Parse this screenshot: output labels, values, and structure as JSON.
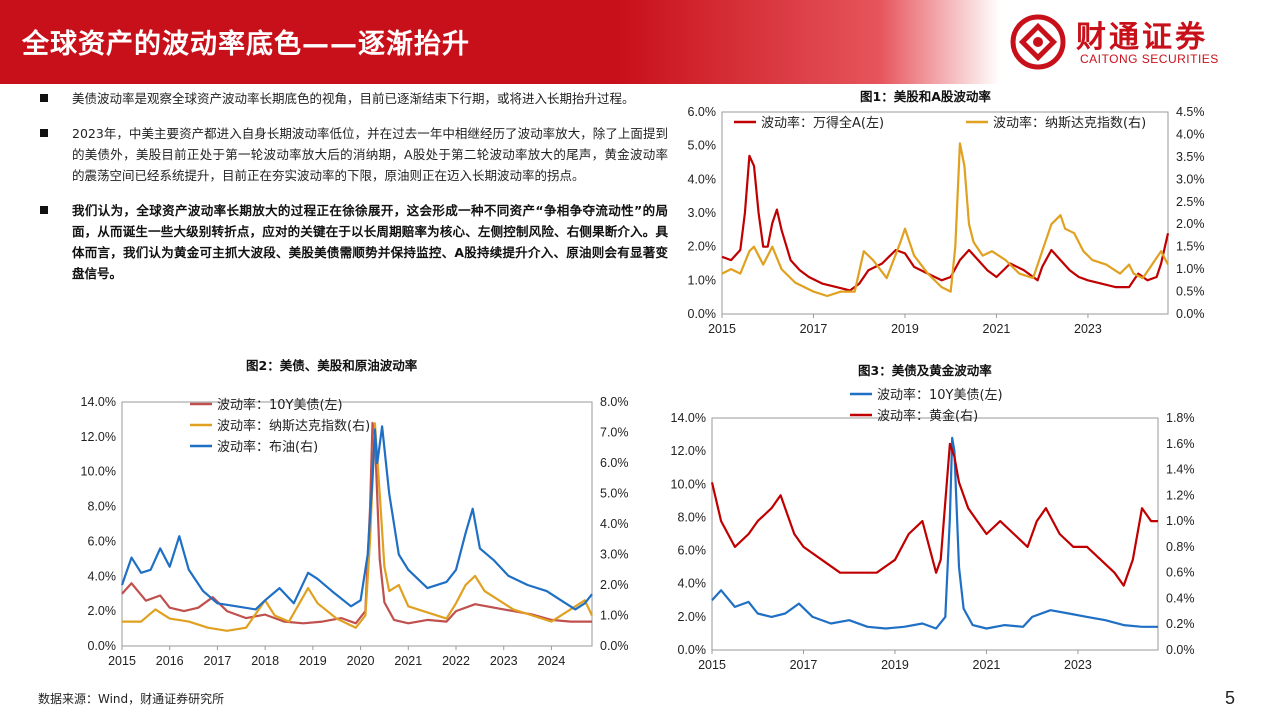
{
  "header": {
    "title": "全球资产的波动率底色——逐渐抬升",
    "logo_cn": "财通证券",
    "logo_en": "CAITONG SECURITIES",
    "brand_color": "#c8101a"
  },
  "bullets": [
    {
      "text": "美债波动率是观察全球资产波动率长期底色的视角，目前已逐渐结束下行期，或将进入长期抬升过程。",
      "bold": false
    },
    {
      "text": "2023年，中美主要资产都进入自身长期波动率低位，并在过去一年中相继经历了波动率放大，除了上面提到的美债外，美股目前正处于第一轮波动率放大后的消纳期，A股处于第二轮波动率放大的尾声，黄金波动率的震荡空间已经系统提升，目前正在夯实波动率的下限，原油则正在迈入长期波动率的拐点。",
      "bold": false
    },
    {
      "text": "我们认为，全球资产波动率长期放大的过程正在徐徐展开，这会形成一种不同资产“争相争夺流动性”的局面，从而诞生一些大级别转折点，应对的关键在于以长周期赔率为核心、左侧控制风险、右侧果断介入。具体而言，我们认为黄金可主抓大波段、美股美债需顺势并保持监控、A股持续提升介入、原油则会有显著变盘信号。",
      "bold": true
    }
  ],
  "source": "数据来源：Wind，财通证券研究所",
  "page_number": "5",
  "chart_data": [
    {
      "id": "fig1",
      "type": "line",
      "title": "图1：美股和A股波动率",
      "x_ticks": [
        "2015",
        "2017",
        "2019",
        "2021",
        "2023"
      ],
      "xlim": [
        2015,
        2024.75
      ],
      "left_ticks": [
        "0.0%",
        "1.0%",
        "2.0%",
        "3.0%",
        "4.0%",
        "5.0%",
        "6.0%"
      ],
      "right_ticks": [
        "0.0%",
        "0.5%",
        "1.0%",
        "1.5%",
        "2.0%",
        "2.5%",
        "3.0%",
        "3.5%",
        "4.0%",
        "4.5%"
      ],
      "ylim_left": [
        0,
        6
      ],
      "ylim_right": [
        0,
        4.5
      ],
      "legend_position": "top",
      "series": [
        {
          "name": "波动率：万得全A(左)",
          "axis": "left",
          "color": "#c00000",
          "x": [
            2015.0,
            2015.2,
            2015.4,
            2015.5,
            2015.6,
            2015.7,
            2015.8,
            2015.9,
            2016.0,
            2016.1,
            2016.2,
            2016.3,
            2016.5,
            2016.7,
            2016.9,
            2017.2,
            2017.5,
            2017.8,
            2018.0,
            2018.2,
            2018.5,
            2018.8,
            2019.0,
            2019.2,
            2019.5,
            2019.8,
            2020.0,
            2020.2,
            2020.4,
            2020.6,
            2020.8,
            2021.0,
            2021.3,
            2021.6,
            2021.9,
            2022.0,
            2022.2,
            2022.4,
            2022.6,
            2022.8,
            2023.0,
            2023.3,
            2023.6,
            2023.9,
            2024.0,
            2024.1,
            2024.3,
            2024.5,
            2024.6,
            2024.75
          ],
          "y": [
            1.7,
            1.6,
            1.9,
            3.0,
            4.7,
            4.4,
            3.0,
            2.0,
            2.0,
            2.7,
            3.1,
            2.5,
            1.6,
            1.3,
            1.1,
            0.9,
            0.8,
            0.7,
            0.9,
            1.3,
            1.5,
            1.9,
            1.8,
            1.4,
            1.2,
            1.0,
            1.1,
            1.6,
            1.9,
            1.6,
            1.3,
            1.1,
            1.5,
            1.3,
            1.0,
            1.4,
            1.9,
            1.6,
            1.3,
            1.1,
            1.0,
            0.9,
            0.8,
            0.8,
            1.0,
            1.2,
            1.0,
            1.1,
            1.5,
            2.4
          ]
        },
        {
          "name": "波动率：纳斯达克指数(右)",
          "axis": "right",
          "color": "#e0a020",
          "x": [
            2015.0,
            2015.2,
            2015.4,
            2015.6,
            2015.7,
            2015.9,
            2016.1,
            2016.3,
            2016.6,
            2017.0,
            2017.3,
            2017.6,
            2017.9,
            2018.1,
            2018.3,
            2018.6,
            2018.9,
            2019.0,
            2019.2,
            2019.5,
            2019.8,
            2020.0,
            2020.1,
            2020.2,
            2020.3,
            2020.4,
            2020.5,
            2020.7,
            2020.9,
            2021.2,
            2021.5,
            2021.8,
            2022.0,
            2022.2,
            2022.4,
            2022.5,
            2022.7,
            2022.9,
            2023.1,
            2023.4,
            2023.7,
            2023.9,
            2024.0,
            2024.2,
            2024.4,
            2024.6,
            2024.75
          ],
          "y": [
            0.9,
            1.0,
            0.9,
            1.4,
            1.5,
            1.1,
            1.5,
            1.0,
            0.7,
            0.5,
            0.4,
            0.5,
            0.5,
            1.4,
            1.2,
            0.8,
            1.6,
            1.9,
            1.3,
            0.9,
            0.6,
            0.5,
            1.5,
            3.8,
            3.3,
            2.0,
            1.6,
            1.3,
            1.4,
            1.2,
            0.9,
            0.8,
            1.4,
            2.0,
            2.2,
            1.9,
            1.8,
            1.4,
            1.2,
            1.1,
            0.9,
            1.1,
            0.9,
            0.8,
            1.1,
            1.4,
            1.1
          ]
        }
      ]
    },
    {
      "id": "fig2",
      "type": "line",
      "title": "图2：美债、美股和原油波动率",
      "x_ticks": [
        "2015",
        "2016",
        "2017",
        "2018",
        "2019",
        "2020",
        "2021",
        "2022",
        "2023",
        "2024"
      ],
      "xlim": [
        2015,
        2024.85
      ],
      "left_ticks": [
        "0.0%",
        "2.0%",
        "4.0%",
        "6.0%",
        "8.0%",
        "10.0%",
        "12.0%",
        "14.0%"
      ],
      "right_ticks": [
        "0.0%",
        "1.0%",
        "2.0%",
        "3.0%",
        "4.0%",
        "5.0%",
        "6.0%",
        "7.0%",
        "8.0%"
      ],
      "ylim_left": [
        0,
        14
      ],
      "ylim_right": [
        0,
        8
      ],
      "legend_position": "top-left",
      "series": [
        {
          "name": "波动率：10Y美债(左)",
          "axis": "left",
          "color": "#c0504d",
          "x": [
            2015.0,
            2015.2,
            2015.5,
            2015.8,
            2016.0,
            2016.3,
            2016.6,
            2016.9,
            2017.2,
            2017.6,
            2018.0,
            2018.4,
            2018.8,
            2019.2,
            2019.6,
            2019.9,
            2020.1,
            2020.2,
            2020.25,
            2020.3,
            2020.4,
            2020.5,
            2020.7,
            2021.0,
            2021.4,
            2021.8,
            2022.0,
            2022.4,
            2022.8,
            2023.2,
            2023.6,
            2024.0,
            2024.4,
            2024.85
          ],
          "y": [
            3.0,
            3.6,
            2.6,
            2.9,
            2.2,
            2.0,
            2.2,
            2.8,
            2.0,
            1.6,
            1.8,
            1.4,
            1.3,
            1.4,
            1.6,
            1.3,
            2.0,
            8.0,
            12.8,
            12.0,
            5.0,
            2.5,
            1.5,
            1.3,
            1.5,
            1.4,
            2.0,
            2.4,
            2.2,
            2.0,
            1.8,
            1.5,
            1.4,
            1.4
          ]
        },
        {
          "name": "波动率：纳斯达克指数(右)",
          "axis": "right",
          "color": "#e0a020",
          "x": [
            2015.0,
            2015.4,
            2015.7,
            2016.0,
            2016.4,
            2016.8,
            2017.2,
            2017.6,
            2018.0,
            2018.2,
            2018.5,
            2018.9,
            2019.1,
            2019.5,
            2019.9,
            2020.1,
            2020.2,
            2020.3,
            2020.4,
            2020.5,
            2020.6,
            2020.8,
            2021.0,
            2021.4,
            2021.8,
            2022.0,
            2022.2,
            2022.4,
            2022.6,
            2022.9,
            2023.2,
            2023.6,
            2024.0,
            2024.4,
            2024.7,
            2024.85
          ],
          "y": [
            0.8,
            0.8,
            1.2,
            0.9,
            0.8,
            0.6,
            0.5,
            0.6,
            1.5,
            1.0,
            0.8,
            1.9,
            1.4,
            0.9,
            0.6,
            1.0,
            3.5,
            7.3,
            5.0,
            2.6,
            1.8,
            2.0,
            1.3,
            1.1,
            0.9,
            1.4,
            2.0,
            2.3,
            1.8,
            1.5,
            1.2,
            1.0,
            0.8,
            1.2,
            1.5,
            1.0
          ]
        },
        {
          "name": "波动率：布油(右)",
          "axis": "right",
          "color": "#1f6fc4",
          "x": [
            2015.0,
            2015.2,
            2015.4,
            2015.6,
            2015.8,
            2016.0,
            2016.2,
            2016.4,
            2016.7,
            2017.0,
            2017.4,
            2017.8,
            2018.0,
            2018.3,
            2018.6,
            2018.9,
            2019.1,
            2019.4,
            2019.8,
            2020.0,
            2020.15,
            2020.25,
            2020.3,
            2020.35,
            2020.45,
            2020.6,
            2020.8,
            2021.0,
            2021.4,
            2021.8,
            2022.0,
            2022.2,
            2022.35,
            2022.5,
            2022.8,
            2023.1,
            2023.5,
            2023.9,
            2024.2,
            2024.5,
            2024.7,
            2024.85
          ],
          "y": [
            2.0,
            2.9,
            2.4,
            2.5,
            3.2,
            2.6,
            3.6,
            2.5,
            1.8,
            1.4,
            1.3,
            1.2,
            1.5,
            1.9,
            1.4,
            2.4,
            2.2,
            1.8,
            1.3,
            1.5,
            3.0,
            5.5,
            7.1,
            6.0,
            7.2,
            5.0,
            3.0,
            2.5,
            1.9,
            2.1,
            2.5,
            3.7,
            4.5,
            3.2,
            2.8,
            2.3,
            2.0,
            1.8,
            1.5,
            1.2,
            1.4,
            1.7
          ]
        }
      ]
    },
    {
      "id": "fig3",
      "type": "line",
      "title": "图3：美债及黄金波动率",
      "x_ticks": [
        "2015",
        "2017",
        "2019",
        "2021",
        "2023"
      ],
      "xlim": [
        2015,
        2024.75
      ],
      "left_ticks": [
        "0.0%",
        "2.0%",
        "4.0%",
        "6.0%",
        "8.0%",
        "10.0%",
        "12.0%",
        "14.0%"
      ],
      "right_ticks": [
        "0.0%",
        "0.2%",
        "0.4%",
        "0.6%",
        "0.8%",
        "1.0%",
        "1.2%",
        "1.4%",
        "1.6%",
        "1.8%"
      ],
      "ylim_left": [
        0,
        14
      ],
      "ylim_right": [
        0,
        1.8
      ],
      "legend_position": "top-left",
      "series": [
        {
          "name": "波动率：10Y美债(左)",
          "axis": "left",
          "color": "#1f6fc4",
          "x": [
            2015.0,
            2015.2,
            2015.5,
            2015.8,
            2016.0,
            2016.3,
            2016.6,
            2016.9,
            2017.2,
            2017.6,
            2018.0,
            2018.4,
            2018.8,
            2019.2,
            2019.6,
            2019.9,
            2020.1,
            2020.2,
            2020.25,
            2020.3,
            2020.4,
            2020.5,
            2020.7,
            2021.0,
            2021.4,
            2021.8,
            2022.0,
            2022.4,
            2022.8,
            2023.2,
            2023.6,
            2024.0,
            2024.4,
            2024.75
          ],
          "y": [
            3.0,
            3.6,
            2.6,
            2.9,
            2.2,
            2.0,
            2.2,
            2.8,
            2.0,
            1.6,
            1.8,
            1.4,
            1.3,
            1.4,
            1.6,
            1.3,
            2.0,
            8.0,
            12.8,
            12.0,
            5.0,
            2.5,
            1.5,
            1.3,
            1.5,
            1.4,
            2.0,
            2.4,
            2.2,
            2.0,
            1.8,
            1.5,
            1.4,
            1.4
          ]
        },
        {
          "name": "波动率：黄金(右)",
          "axis": "right",
          "color": "#c00000",
          "x": [
            2015.0,
            2015.2,
            2015.5,
            2015.8,
            2016.0,
            2016.3,
            2016.5,
            2016.8,
            2017.0,
            2017.4,
            2017.8,
            2018.2,
            2018.6,
            2019.0,
            2019.3,
            2019.6,
            2019.9,
            2020.0,
            2020.2,
            2020.3,
            2020.4,
            2020.6,
            2020.8,
            2021.0,
            2021.3,
            2021.6,
            2021.9,
            2022.1,
            2022.3,
            2022.6,
            2022.9,
            2023.2,
            2023.5,
            2023.8,
            2024.0,
            2024.2,
            2024.4,
            2024.6,
            2024.75
          ],
          "y": [
            1.3,
            1.0,
            0.8,
            0.9,
            1.0,
            1.1,
            1.2,
            0.9,
            0.8,
            0.7,
            0.6,
            0.6,
            0.6,
            0.7,
            0.9,
            1.0,
            0.6,
            0.7,
            1.6,
            1.5,
            1.3,
            1.1,
            1.0,
            0.9,
            1.0,
            0.9,
            0.8,
            1.0,
            1.1,
            0.9,
            0.8,
            0.8,
            0.7,
            0.6,
            0.5,
            0.7,
            1.1,
            1.0,
            1.0
          ]
        }
      ]
    }
  ]
}
